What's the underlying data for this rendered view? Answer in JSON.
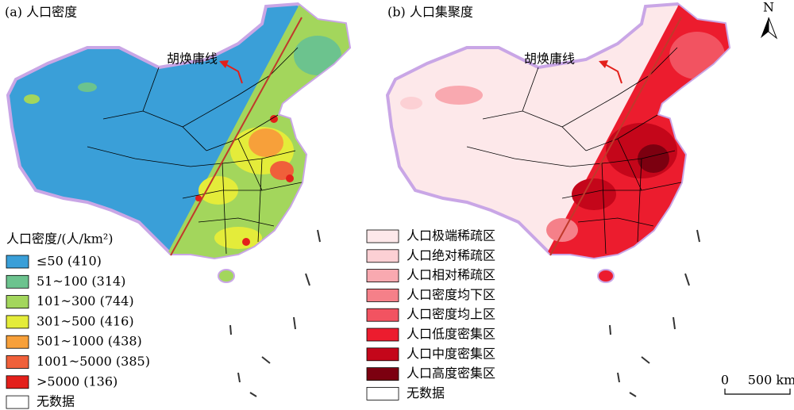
{
  "panels": [
    {
      "title": "(a) 人口密度",
      "annotation": "胡焕庸线",
      "legend": {
        "title": "人口密度/(人/km²)",
        "items": [
          {
            "label": "≤50 (410)",
            "color": "#3a9fd8"
          },
          {
            "label": "51~100 (314)",
            "color": "#6cc38e"
          },
          {
            "label": "101~300 (744)",
            "color": "#a3d65c"
          },
          {
            "label": "301~500 (416)",
            "color": "#e4ec3a"
          },
          {
            "label": "501~1000 (438)",
            "color": "#f7a03a"
          },
          {
            "label": "1001~5000 (385)",
            "color": "#f0603a"
          },
          {
            "label": ">5000 (136)",
            "color": "#e3201b"
          },
          {
            "label": "无数据",
            "color": "#ffffff"
          }
        ]
      }
    },
    {
      "title": "(b) 人口集聚度",
      "annotation": "胡焕庸线",
      "legend": {
        "items": [
          {
            "label": "人口极端稀疏区",
            "color": "#fde8ea"
          },
          {
            "label": "人口绝对稀疏区",
            "color": "#fcd0d4"
          },
          {
            "label": "人口相对稀疏区",
            "color": "#f9a9b0"
          },
          {
            "label": "人口密度均下区",
            "color": "#f58089"
          },
          {
            "label": "人口密度均上区",
            "color": "#f25361"
          },
          {
            "label": "人口低度密集区",
            "color": "#ec1c2e"
          },
          {
            "label": "人口中度密集区",
            "color": "#c4061a"
          },
          {
            "label": "人口高度密集区",
            "color": "#7c0010"
          },
          {
            "label": "无数据",
            "color": "#ffffff"
          }
        ]
      }
    }
  ],
  "north": "N",
  "scale": {
    "start": "0",
    "end": "500 km"
  }
}
